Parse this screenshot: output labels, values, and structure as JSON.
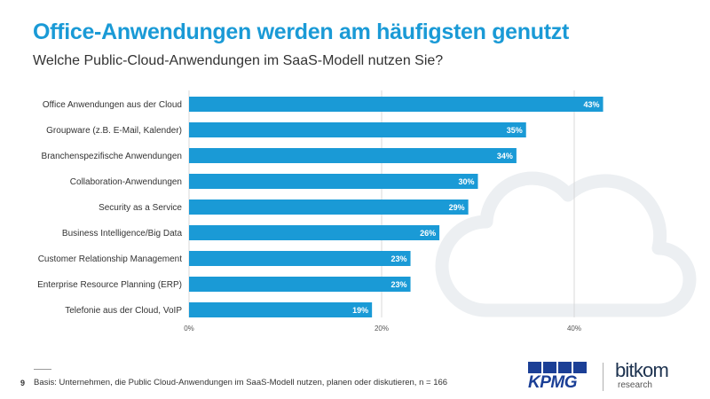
{
  "header": {
    "title": "Office-Anwendungen werden am häufigsten genutzt",
    "subtitle": "Welche Public-Cloud-Anwendungen im SaaS-Modell nutzen Sie?"
  },
  "chart_data": {
    "type": "bar",
    "orientation": "horizontal",
    "categories": [
      "Office Anwendungen aus der Cloud",
      "Groupware (z.B. E-Mail, Kalender)",
      "Branchenspezifische Anwendungen",
      "Collaboration-Anwendungen",
      "Security as a Service",
      "Business Intelligence/Big Data",
      "Customer Relationship Management",
      "Enterprise Resource Planning (ERP)",
      "Telefonie aus der Cloud, VoIP"
    ],
    "values": [
      43,
      35,
      34,
      30,
      29,
      26,
      23,
      23,
      19
    ],
    "data_labels": [
      "43%",
      "35%",
      "34%",
      "30%",
      "29%",
      "26%",
      "23%",
      "23%",
      "19%"
    ],
    "xticks": [
      0,
      20,
      40
    ],
    "xtick_labels": [
      "0%",
      "20%",
      "40%"
    ],
    "xlim": [
      0,
      43
    ],
    "grid": true,
    "title": "Office-Anwendungen werden am häufigsten genutzt",
    "xlabel": "",
    "ylabel": "",
    "bar_color": "#1a9ad6"
  },
  "footer": {
    "page_number": "9",
    "note": "Basis: Unternehmen, die Public Cloud-Anwendungen im SaaS-Modell nutzen, planen oder diskutieren, n = 166"
  },
  "logos": {
    "kpmg": "KPMG",
    "bitkom": "bitkom",
    "bitkom_sub": "research"
  },
  "colors": {
    "accent": "#1a9ad6",
    "kpmg_blue": "#1b3f96",
    "cloud": "#eceff2",
    "grid": "#d9d9d9"
  }
}
